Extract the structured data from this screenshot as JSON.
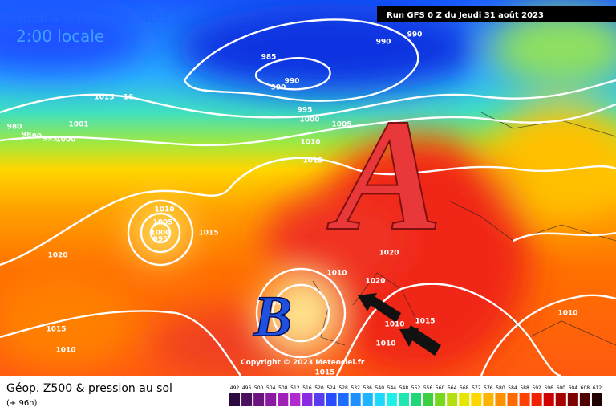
{
  "header": {
    "date": "Lundi 4 septembre 2023",
    "time": "2:00 locale",
    "run": "Run GFS 0 Z du Jeudi 31 août 2023"
  },
  "map": {
    "high": "A",
    "low": "B",
    "isobar_labels": [
      "1015",
      "10",
      "1001",
      "980",
      "98",
      "99",
      "995",
      "1000",
      "985",
      "990",
      "990",
      "990",
      "990",
      "995",
      "1000",
      "1005",
      "1010",
      "1015",
      "1010",
      "1005",
      "1000",
      "995",
      "1015",
      "1020",
      "1020",
      "102",
      "1010",
      "1020",
      "101",
      "1015",
      "1010",
      "1010",
      "1015",
      "1010",
      "1015",
      "1010"
    ],
    "copyright": "Copyright © 2023 Meteociel.fr"
  },
  "footer": {
    "title": "Géop. Z500 & pression au sol",
    "lead": "(+ 96h)",
    "scale": {
      "ticks": [
        492,
        496,
        500,
        504,
        508,
        512,
        516,
        520,
        524,
        528,
        532,
        536,
        540,
        544,
        548,
        552,
        556,
        560,
        564,
        568,
        572,
        576,
        580,
        584,
        588,
        592,
        596,
        600,
        604,
        608,
        612
      ],
      "colors": [
        "#2b0a3d",
        "#4b0f5e",
        "#6b1480",
        "#8b1aa0",
        "#a020b8",
        "#b02ad0",
        "#8a2be2",
        "#5a3cf0",
        "#2a4cff",
        "#1e6cff",
        "#1e90ff",
        "#1eb4ff",
        "#1ed8ff",
        "#1ef0e8",
        "#1ee8b0",
        "#1ed878",
        "#3cd040",
        "#78d820",
        "#b4e010",
        "#e6e600",
        "#ffd700",
        "#ffb400",
        "#ff9000",
        "#ff6a00",
        "#ff4000",
        "#f02000",
        "#d00000",
        "#a80000",
        "#800000",
        "#500000",
        "#200000"
      ]
    }
  }
}
